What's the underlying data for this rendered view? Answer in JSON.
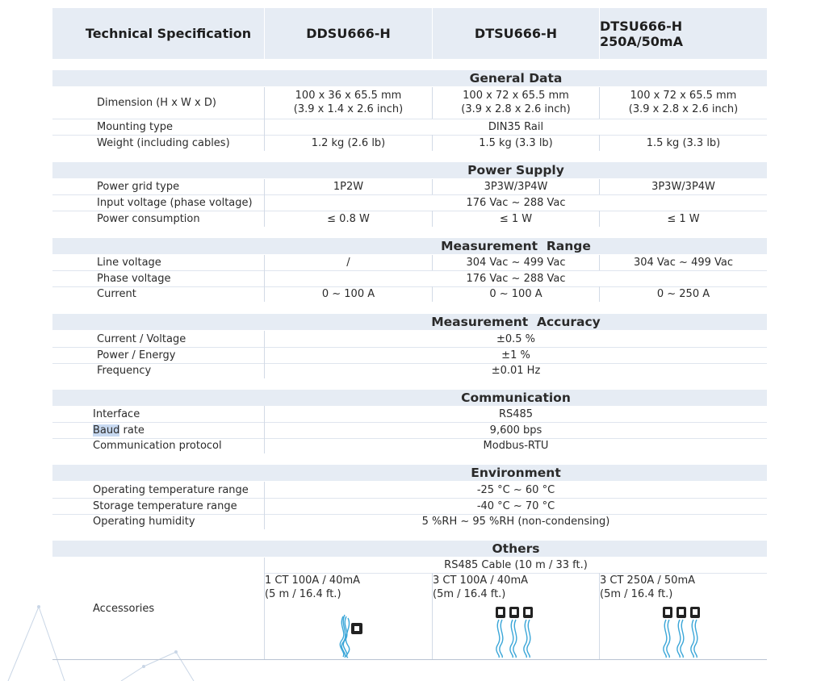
{
  "header": {
    "col0": "Technical Specification",
    "col1": "DDSU666-H",
    "col2": "DTSU666-H",
    "col3": "DTSU666-H 250A/50mA"
  },
  "sections": {
    "general": {
      "title": "General Data",
      "dimension": {
        "label": "Dimension (H x W x D)",
        "ddsu_l1": "100 x 36 x 65.5 mm",
        "ddsu_l2": "(3.9 x 1.4 x 2.6 inch)",
        "dtsu_l1": "100 x 72 x 65.5 mm",
        "dtsu_l2": "(3.9 x 2.8 x 2.6 inch)",
        "dtsu250_l1": "100 x 72 x 65.5 mm",
        "dtsu250_l2": "(3.9 x 2.8 x 2.6 inch)"
      },
      "mounting": {
        "label": "Mounting type",
        "value": "DIN35 Rail"
      },
      "weight": {
        "label": "Weight (including cables)",
        "ddsu": "1.2 kg (2.6 lb)",
        "dtsu": "1.5 kg (3.3 lb)",
        "dtsu250": "1.5 kg (3.3 lb)"
      }
    },
    "power": {
      "title": "Power Supply",
      "grid": {
        "label": "Power grid type",
        "ddsu": "1P2W",
        "dtsu": "3P3W/3P4W",
        "dtsu250": "3P3W/3P4W"
      },
      "input": {
        "label": "Input voltage (phase voltage)",
        "value": "176 Vac ~ 288 Vac"
      },
      "consumption": {
        "label": "Power consumption",
        "ddsu": "≤ 0.8 W",
        "dtsu": "≤ 1 W",
        "dtsu250": "≤ 1 W"
      }
    },
    "range": {
      "title": "Measurement  Range",
      "line": {
        "label": "Line voltage",
        "ddsu": "/",
        "dtsu": "304 Vac ~ 499 Vac",
        "dtsu250": "304 Vac ~ 499 Vac"
      },
      "phase": {
        "label": "Phase voltage",
        "value": "176 Vac ~ 288 Vac"
      },
      "current": {
        "label": "Current",
        "ddsu": "0 ~ 100 A",
        "dtsu": "0 ~ 100 A",
        "dtsu250": "0 ~ 250 A"
      }
    },
    "accuracy": {
      "title": "Measurement  Accuracy",
      "cv": {
        "label": "Current / Voltage",
        "value": "±0.5 %"
      },
      "pe": {
        "label": "Power / Energy",
        "value": "±1 %"
      },
      "freq": {
        "label": "Frequency",
        "value": "±0.01 Hz"
      }
    },
    "comm": {
      "title": "Communication",
      "iface": {
        "label": "Interface",
        "value": "RS485"
      },
      "baud": {
        "label_hi": "Baud",
        "label_rest": " rate",
        "value": "9,600 bps"
      },
      "proto": {
        "label": "Communication protocol",
        "value": "Modbus-RTU"
      }
    },
    "env": {
      "title": "Environment",
      "op": {
        "label": "Operating temperature range",
        "value": "-25 °C ~ 60 °C"
      },
      "st": {
        "label": "Storage temperature range",
        "value": "-40 °C ~ 70 °C"
      },
      "hum": {
        "label": "Operating humidity",
        "value": "5 %RH ~ 95 %RH (non-condensing)"
      }
    },
    "others": {
      "title": "Others",
      "cable": "RS485 Cable (10 m / 33 ft.)",
      "label": "Accessories",
      "ddsu_l1": "1 CT 100A / 40mA",
      "ddsu_l2": "(5 m / 16.4 ft.)",
      "dtsu_l1": "3 CT 100A / 40mA",
      "dtsu_l2": "(5m / 16.4 ft.)",
      "dtsu250_l1": "3 CT 250A / 50mA",
      "dtsu250_l2": "(5m / 16.4 ft.)"
    }
  },
  "colors": {
    "band": "#e6ecf4",
    "cable": "#3aa6d8",
    "clamp": "#222222"
  }
}
